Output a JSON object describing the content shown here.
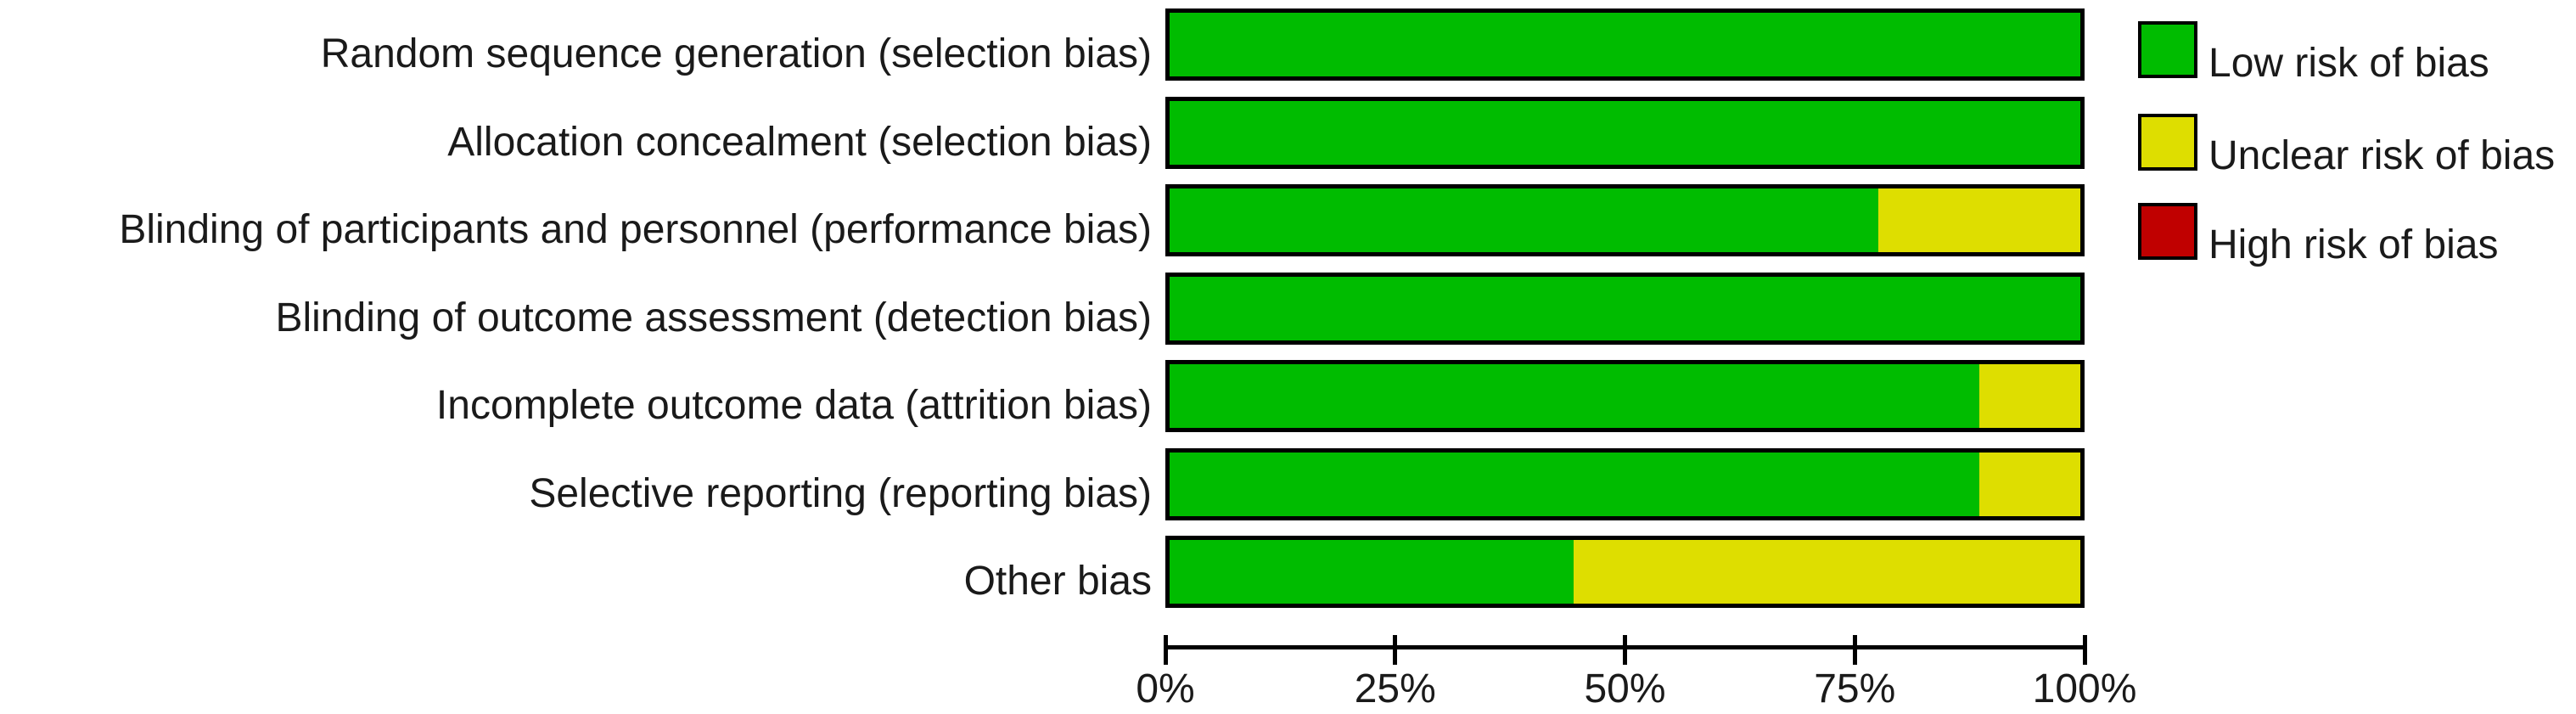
{
  "chart_data": {
    "type": "bar",
    "subtype": "horizontal-stacked",
    "title": "",
    "xlabel": "",
    "ylabel": "",
    "xlim": [
      0,
      100
    ],
    "x_ticks": [
      "0%",
      "25%",
      "50%",
      "75%",
      "100%"
    ],
    "grid": false,
    "legend_position": "right",
    "categories": [
      "Random sequence generation (selection bias)",
      "Allocation concealment (selection bias)",
      "Blinding of participants and personnel (performance bias)",
      "Blinding of outcome assessment (detection bias)",
      "Incomplete outcome data (attrition bias)",
      "Selective reporting (reporting bias)",
      "Other bias"
    ],
    "series": [
      {
        "key": "low",
        "name": "Low risk of bias",
        "color": "#00BC00",
        "values": [
          100,
          100,
          77.8,
          100,
          88.9,
          88.9,
          44.4
        ]
      },
      {
        "key": "unclear",
        "name": "Unclear risk of bias",
        "color": "#DEDE00",
        "values": [
          0,
          0,
          22.2,
          0,
          11.1,
          11.1,
          55.6
        ]
      },
      {
        "key": "high",
        "name": "High risk of bias",
        "color": "#C00000",
        "values": [
          0,
          0,
          0,
          0,
          0,
          0,
          0
        ]
      }
    ]
  },
  "colors": {
    "low_risk": "#00BC00",
    "unclear_risk": "#DEDE00",
    "high_risk": "#C00000",
    "bar_border": "#000000",
    "axis": "#000000",
    "text": "#1a1a1a",
    "background": "#ffffff"
  }
}
